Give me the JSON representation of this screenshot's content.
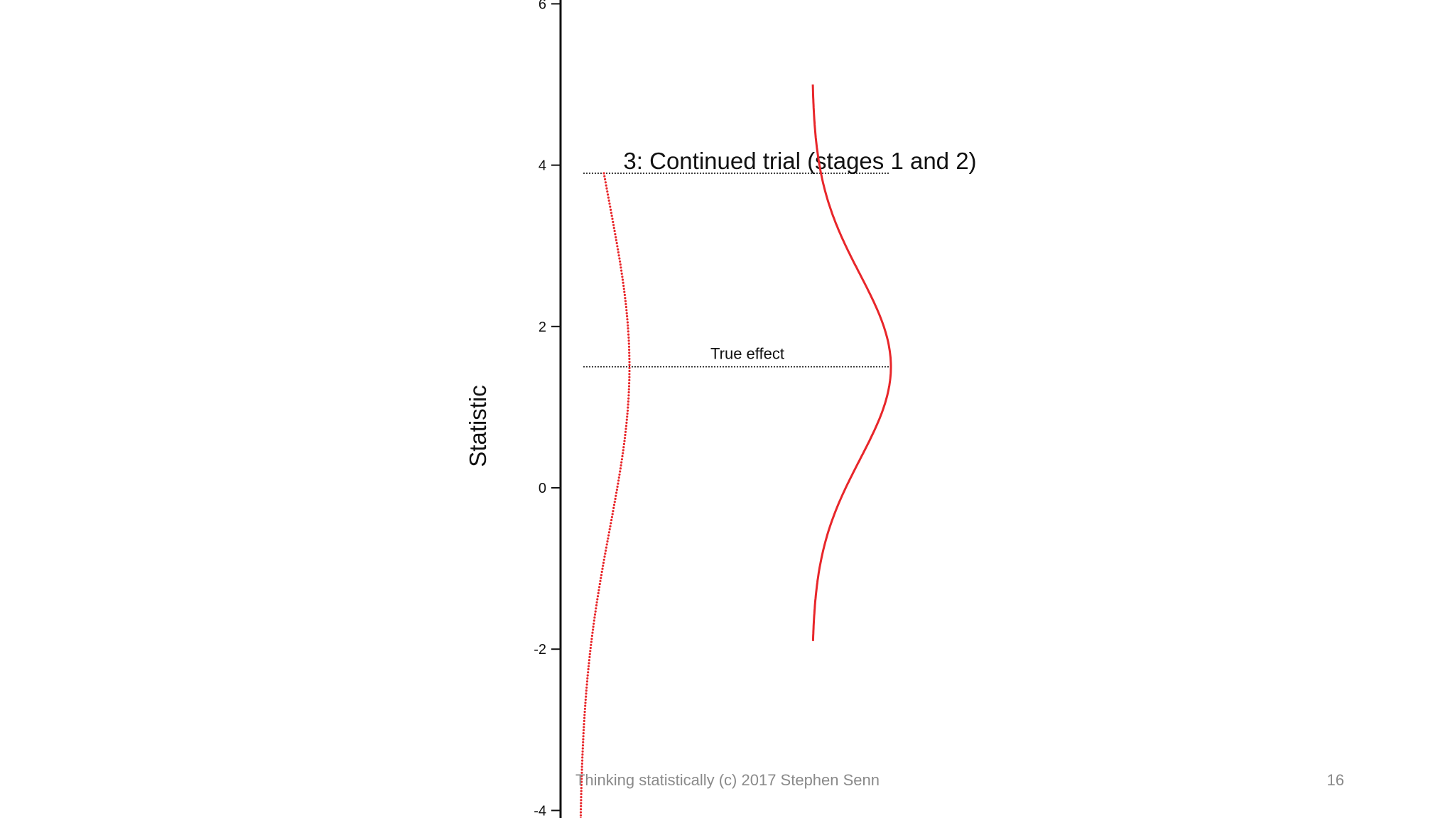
{
  "slide": {
    "footer": "Thinking statistically (c) 2017 Stephen Senn",
    "page_number": "16"
  },
  "chart_data": {
    "type": "line",
    "title": "3: Continued trial (stages 1 and 2)",
    "xlabel": "",
    "ylabel": "Statistic",
    "ylim": [
      -4.4,
      7.4
    ],
    "yticks": [
      6,
      4,
      2,
      0,
      -2,
      -4
    ],
    "grid": false,
    "reference_lines": [
      {
        "y": 3.9,
        "label": "",
        "style": "dotted",
        "color": "#000000"
      },
      {
        "y": 1.5,
        "label": "True effect",
        "style": "dotted",
        "color": "#000000"
      }
    ],
    "series": [
      {
        "style": "dotted",
        "color": "#e8262a",
        "mean": 1.5,
        "sd": 2.0,
        "y_range": [
          -4.4,
          3.9
        ]
      },
      {
        "style": "solid",
        "color": "#e8262a",
        "mean": 1.5,
        "sd": 1.15,
        "y_range": [
          -1.9,
          5.0
        ]
      }
    ]
  }
}
